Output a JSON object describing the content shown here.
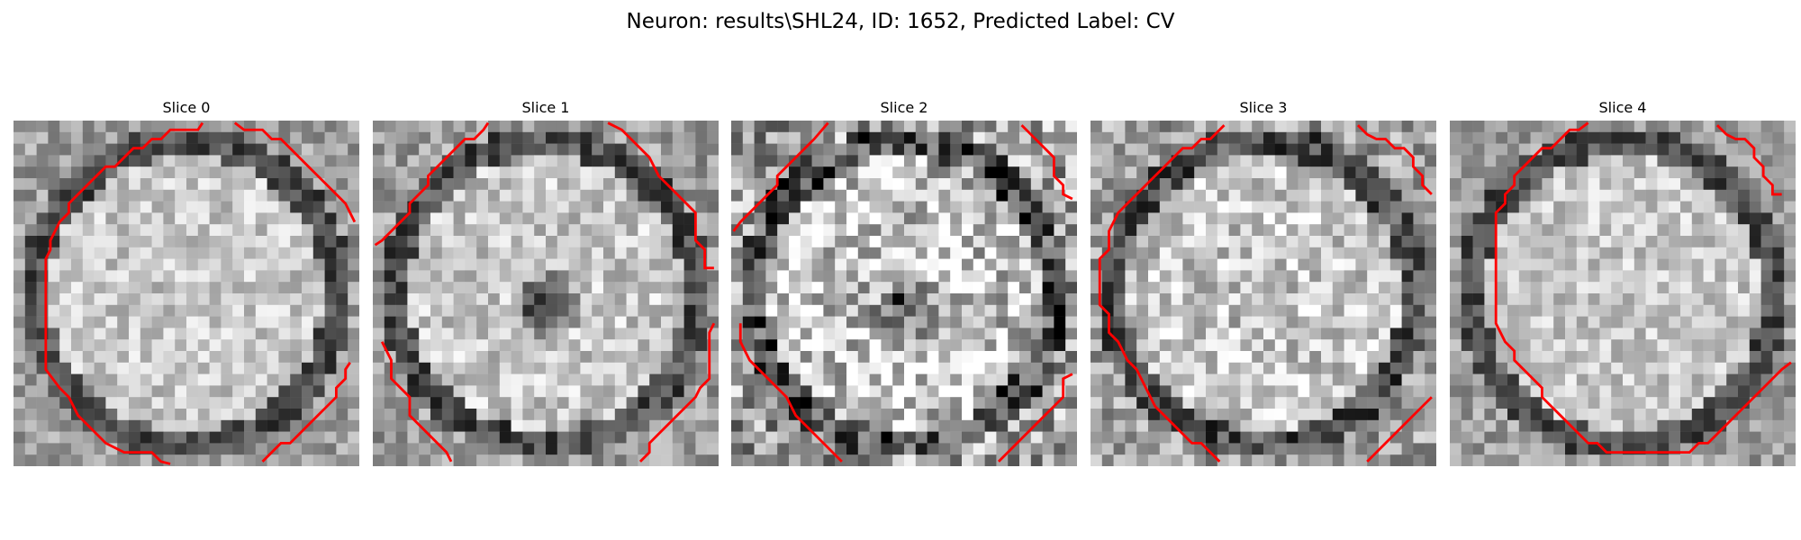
{
  "figure": {
    "title": "Neuron: results\\SHL24, ID: 1652, Predicted Label: CV",
    "panels": [
      {
        "title": "Slice 0",
        "kind": "round",
        "seed": 11,
        "dark_center": 0.0,
        "noise": 0.18
      },
      {
        "title": "Slice 1",
        "kind": "round",
        "seed": 23,
        "dark_center": 0.75,
        "noise": 0.2
      },
      {
        "title": "Slice 2",
        "kind": "round",
        "seed": 37,
        "dark_center": 0.55,
        "noise": 0.34
      },
      {
        "title": "Slice 3",
        "kind": "round",
        "seed": 41,
        "dark_center": 0.15,
        "noise": 0.24
      },
      {
        "title": "Slice 4",
        "kind": "round",
        "seed": 53,
        "dark_center": 0.0,
        "noise": 0.18
      }
    ],
    "contour_color": "#ff0000",
    "colormap": "gray"
  }
}
